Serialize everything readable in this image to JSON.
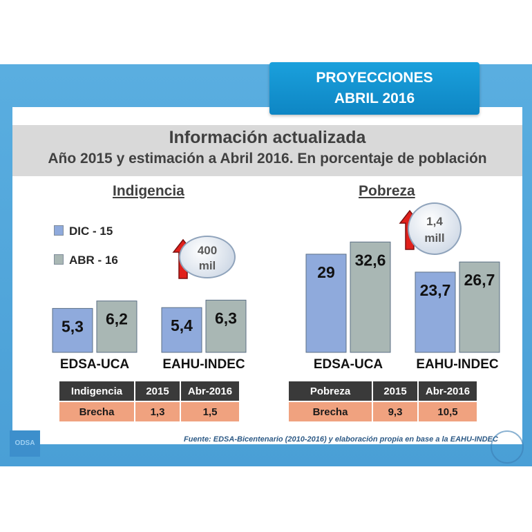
{
  "badge": {
    "line1": "PROYECCIONES",
    "line2": "ABRIL 2016"
  },
  "header": {
    "title": "Información actualizada",
    "subtitle": "Año 2015 y estimación a Abril 2016. En porcentaje de población"
  },
  "legend": {
    "items": [
      {
        "label": "DIC - 15",
        "color": "#8faadc"
      },
      {
        "label": "ABR - 16",
        "color": "#a9b7b4"
      }
    ]
  },
  "colors": {
    "dic": "#8faadc",
    "abr": "#a9b7b4",
    "bar_border": "#5b6f85",
    "arrow": "#e0201b",
    "table_header": "#3a3a3a",
    "table_row": "#f0a27f"
  },
  "chart_data": [
    {
      "type": "bar",
      "title": "Indigencia",
      "categories": [
        "EDSA-UCA",
        "EAHU-INDEC"
      ],
      "series": [
        {
          "name": "DIC - 15",
          "values": [
            5.3,
            5.4
          ]
        },
        {
          "name": "ABR - 16",
          "values": [
            6.2,
            6.3
          ]
        }
      ],
      "value_labels": [
        [
          "5,3",
          "5,4"
        ],
        [
          "6,2",
          "6,3"
        ]
      ],
      "annotation": {
        "line1": "400",
        "line2": "mil"
      },
      "table": {
        "header": [
          "Indigencia",
          "2015",
          "Abr-2016"
        ],
        "row": [
          "Brecha",
          "1,3",
          "1,5"
        ]
      }
    },
    {
      "type": "bar",
      "title": "Pobreza",
      "categories": [
        "EDSA-UCA",
        "EAHU-INDEC"
      ],
      "series": [
        {
          "name": "DIC - 15",
          "values": [
            29,
            23.7
          ]
        },
        {
          "name": "ABR - 16",
          "values": [
            32.6,
            26.7
          ]
        }
      ],
      "value_labels": [
        [
          "29",
          "23,7"
        ],
        [
          "32,6",
          "26,7"
        ]
      ],
      "annotation": {
        "line1": "1,4",
        "line2": "mill"
      },
      "table": {
        "header": [
          "Pobreza",
          "2015",
          "Abr-2016"
        ],
        "row": [
          "Brecha",
          "9,3",
          "10,5"
        ]
      }
    }
  ],
  "footer": {
    "source": "Fuente: EDSA-Bicentenario (2010-2016) y elaboración propia en base a la EAHU-INDEC",
    "logo": "ODSA"
  }
}
